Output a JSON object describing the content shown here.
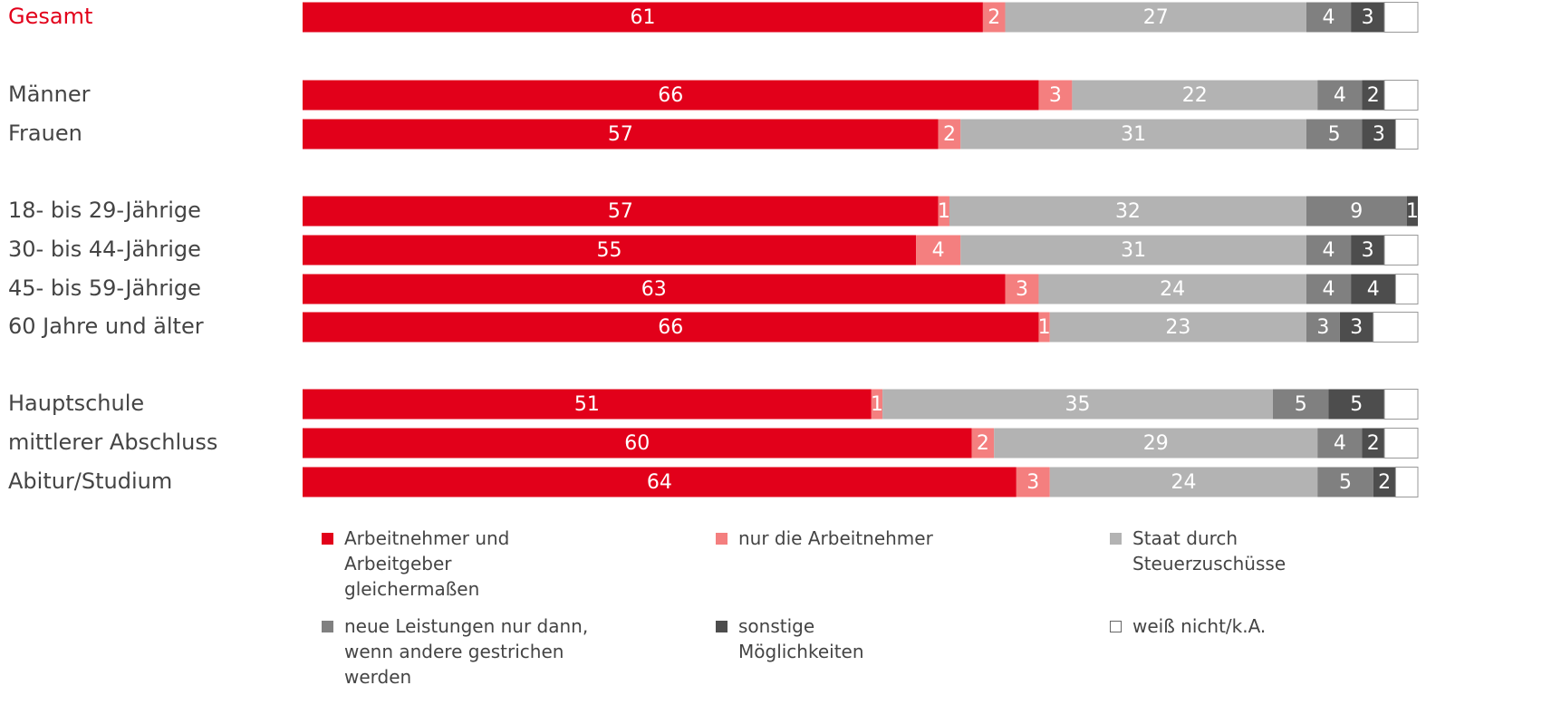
{
  "chart_data": {
    "type": "stacked-bar-horizontal",
    "categories": [
      "Gesamt",
      "Männer",
      "Frauen",
      "18- bis 29-Jährige",
      "30- bis 44-Jährige",
      "45- bis 59-Jährige",
      "60 Jahre und älter",
      "Hauptschule",
      "mittlerer Abschluss",
      "Abitur/Studium"
    ],
    "highlight_color": "#e2001a",
    "xlim": [
      0,
      100
    ],
    "series": [
      {
        "name": "Arbeitnehmer und Arbeitgeber gleichermaßen",
        "color": "#e2001a",
        "values": [
          61,
          66,
          57,
          57,
          55,
          63,
          66,
          51,
          60,
          64
        ]
      },
      {
        "name": "nur die Arbeitnehmer",
        "color": "#f47f7f",
        "values": [
          2,
          3,
          2,
          1,
          4,
          3,
          1,
          1,
          2,
          3
        ]
      },
      {
        "name": "Staat durch Steuerzuschüsse",
        "color": "#b3b3b3",
        "values": [
          27,
          22,
          31,
          32,
          31,
          24,
          23,
          35,
          29,
          24
        ]
      },
      {
        "name": "neue Leistungen nur dann, wenn andere gestrichen werden",
        "color": "#808080",
        "values": [
          4,
          4,
          5,
          9,
          4,
          4,
          3,
          5,
          4,
          5
        ]
      },
      {
        "name": "sonstige Möglichkeiten",
        "color": "#4d4d4d",
        "values": [
          3,
          2,
          3,
          1,
          3,
          4,
          3,
          5,
          2,
          2
        ]
      },
      {
        "name": "weiß nicht/k.A.",
        "color": "#ffffff",
        "values": [
          3,
          3,
          2,
          0,
          3,
          2,
          4,
          3,
          3,
          2
        ]
      }
    ]
  }
}
